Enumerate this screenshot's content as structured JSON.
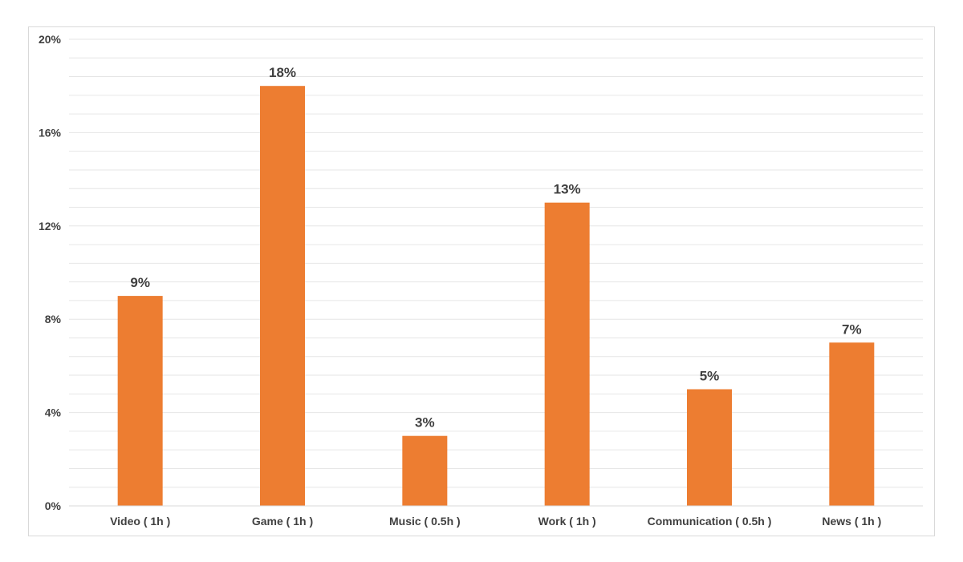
{
  "chart_data": {
    "type": "bar",
    "categories": [
      "Video ( 1h )",
      "Game ( 1h )",
      "Music ( 0.5h )",
      "Work ( 1h )",
      "Communication ( 0.5h )",
      "News ( 1h )"
    ],
    "values": [
      9,
      18,
      3,
      13,
      5,
      7
    ],
    "data_labels": [
      "9%",
      "18%",
      "3%",
      "13%",
      "5%",
      "7%"
    ],
    "ylim": [
      0,
      20
    ],
    "yticks": [
      0,
      4,
      8,
      12,
      16,
      20
    ],
    "ytick_labels": [
      "0%",
      "4%",
      "8%",
      "12%",
      "16%",
      "20%"
    ],
    "title": "",
    "xlabel": "",
    "ylabel": "",
    "grid": true,
    "bar_color": "#ed7d31",
    "grid_color": "#e6e6e6",
    "axis_color": "#d9d9d9"
  }
}
